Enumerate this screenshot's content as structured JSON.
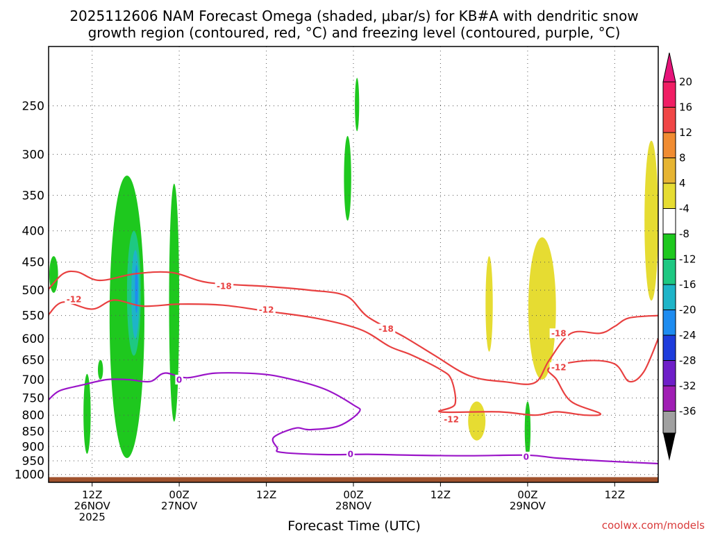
{
  "chart_data": {
    "type": "cross-section",
    "title_line1": "2025112606 NAM Forecast Omega (shaded, μbar/s) for KB#A with dendritic snow",
    "title_line2": "growth region (contoured, red, °C) and freezing level (contoured, purple, °C)",
    "xlabel": "Forecast Time (UTC)",
    "ylabel": "",
    "credit": "coolwx.com/models",
    "y_axis": {
      "scale": "log",
      "inverted": true,
      "ylim": [
        1030,
        200
      ],
      "ticks": [
        250,
        300,
        350,
        400,
        450,
        500,
        550,
        600,
        650,
        700,
        750,
        800,
        850,
        900,
        950,
        1000
      ],
      "grid": true
    },
    "x_axis": {
      "start_hour": 6,
      "xlim": [
        0,
        84
      ],
      "grid": true,
      "ticks": [
        {
          "hour": 6,
          "label1": "12Z",
          "label2": "26NOV",
          "label3": "2025"
        },
        {
          "hour": 18,
          "label1": "00Z",
          "label2": "27NOV",
          "label3": ""
        },
        {
          "hour": 30,
          "label1": "12Z",
          "label2": "",
          "label3": ""
        },
        {
          "hour": 42,
          "label1": "00Z",
          "label2": "28NOV",
          "label3": ""
        },
        {
          "hour": 54,
          "label1": "12Z",
          "label2": "",
          "label3": ""
        },
        {
          "hour": 66,
          "label1": "00Z",
          "label2": "29NOV",
          "label3": ""
        },
        {
          "hour": 78,
          "label1": "12Z",
          "label2": "",
          "label3": ""
        }
      ]
    },
    "colorbar": {
      "units": "μbar/s",
      "levels": [
        {
          "label": "20",
          "color": "#f01e64"
        },
        {
          "label": "16",
          "color": "#f04646"
        },
        {
          "label": "12",
          "color": "#f08c32"
        },
        {
          "label": "8",
          "color": "#e6b432"
        },
        {
          "label": "4",
          "color": "#e6dc32"
        },
        {
          "label": "-4",
          "color": "#ffffff"
        },
        {
          "label": "-8",
          "color": "#1ec81e"
        },
        {
          "label": "-12",
          "color": "#1ec882"
        },
        {
          "label": "-16",
          "color": "#1eb4c8"
        },
        {
          "label": "-20",
          "color": "#1e8cf0"
        },
        {
          "label": "-24",
          "color": "#1e3cdc"
        },
        {
          "label": "-28",
          "color": "#6e1ec8"
        },
        {
          "label": "-32",
          "color": "#a01eb4"
        },
        {
          "label": "-36",
          "color": "#a0a0a0"
        }
      ],
      "top_arrow_color": "#e6147a",
      "bottom_arrow_color": "#000000"
    },
    "contours": [
      {
        "name": "-18",
        "variable": "temperature",
        "units": "°C",
        "color": "#e84040",
        "labels": [
          {
            "text": "-18",
            "hour": 24.2,
            "p": 492
          },
          {
            "text": "-18",
            "hour": 46.5,
            "p": 578
          },
          {
            "text": "-18",
            "hour": 70.3,
            "p": 588
          }
        ],
        "points": [
          [
            0,
            498
          ],
          [
            2,
            470
          ],
          [
            4,
            467
          ],
          [
            7,
            482
          ],
          [
            12,
            470
          ],
          [
            17,
            468
          ],
          [
            22,
            486
          ],
          [
            30,
            493
          ],
          [
            36,
            500
          ],
          [
            41,
            511
          ],
          [
            44,
            553
          ],
          [
            49,
            596
          ],
          [
            53,
            637
          ],
          [
            58,
            690
          ],
          [
            63,
            706
          ],
          [
            67,
            708
          ],
          [
            69,
            650
          ],
          [
            72,
            588
          ],
          [
            76,
            588
          ],
          [
            78,
            573
          ],
          [
            80,
            555
          ],
          [
            84,
            550
          ]
        ]
      },
      {
        "name": "-12",
        "variable": "temperature",
        "units": "°C",
        "color": "#e84040",
        "labels": [
          {
            "text": "-12",
            "hour": 3.5,
            "p": 517
          },
          {
            "text": "-12",
            "hour": 30.0,
            "p": 538
          },
          {
            "text": "-12",
            "hour": 55.5,
            "p": 812
          },
          {
            "text": "-12",
            "hour": 70.3,
            "p": 668
          }
        ],
        "points": [
          [
            0,
            548
          ],
          [
            2,
            523
          ],
          [
            6,
            537
          ],
          [
            9,
            519
          ],
          [
            13,
            531
          ],
          [
            18,
            527
          ],
          [
            24,
            529
          ],
          [
            30,
            541
          ],
          [
            37,
            556
          ],
          [
            43,
            580
          ],
          [
            47,
            618
          ],
          [
            50,
            638
          ],
          [
            54,
            674
          ],
          [
            55.5,
            700
          ],
          [
            56,
            768
          ],
          [
            54,
            790
          ],
          [
            62,
            790
          ],
          [
            67,
            800
          ],
          [
            70,
            790
          ],
          [
            74,
            800
          ],
          [
            76,
            795
          ],
          [
            72,
            760
          ],
          [
            70,
            700
          ],
          [
            69,
            670
          ],
          [
            74,
            652
          ],
          [
            78,
            660
          ],
          [
            80,
            705
          ],
          [
            82,
            680
          ],
          [
            84,
            600
          ]
        ]
      },
      {
        "name": "0",
        "variable": "temperature",
        "units": "°C",
        "color": "#9a14c8",
        "labels": [
          {
            "text": "0",
            "hour": 18.0,
            "p": 700
          },
          {
            "text": "0",
            "hour": 41.6,
            "p": 925
          },
          {
            "text": "0",
            "hour": 65.8,
            "p": 935
          }
        ],
        "points": [
          [
            0,
            755
          ],
          [
            1.5,
            730
          ],
          [
            4.5,
            715
          ],
          [
            8,
            700
          ],
          [
            11,
            700
          ],
          [
            14,
            705
          ],
          [
            16,
            683
          ],
          [
            19,
            695
          ],
          [
            23,
            683
          ],
          [
            29,
            685
          ],
          [
            33,
            697
          ],
          [
            38,
            725
          ],
          [
            42,
            770
          ],
          [
            42.8,
            790
          ],
          [
            40,
            833
          ],
          [
            36,
            845
          ],
          [
            34,
            840
          ],
          [
            31,
            870
          ],
          [
            31.5,
            905
          ],
          [
            32,
            920
          ],
          [
            38,
            928
          ],
          [
            44,
            927
          ],
          [
            50,
            930
          ],
          [
            58,
            932
          ],
          [
            66,
            930
          ],
          [
            70,
            940
          ],
          [
            76,
            950
          ],
          [
            84,
            960
          ]
        ]
      }
    ],
    "shaded_regions": [
      {
        "level": "-8",
        "color": "#1ec81e",
        "hours": [
          0.1,
          1.3
        ],
        "p_range": [
          440,
          505
        ]
      },
      {
        "level": "-8",
        "color": "#1ec81e",
        "hours": [
          4.8,
          5.8
        ],
        "p_range": [
          685,
          925
        ]
      },
      {
        "level": "-8",
        "color": "#1ec81e",
        "hours": [
          6.8,
          7.5
        ],
        "p_range": [
          650,
          700
        ]
      },
      {
        "level": "-8",
        "color": "#1ec81e",
        "hours": [
          8.4,
          13.2
        ],
        "p_range": [
          325,
          940
        ]
      },
      {
        "level": "-12",
        "color": "#1ec882",
        "hours": [
          10.8,
          12.7
        ],
        "p_range": [
          400,
          640
        ]
      },
      {
        "level": "-16",
        "color": "#1eb4c8",
        "hours": [
          11.4,
          12.5
        ],
        "p_range": [
          430,
          600
        ]
      },
      {
        "level": "-20",
        "color": "#1e8cf0",
        "hours": [
          11.9,
          12.3
        ],
        "p_range": [
          455,
          545
        ]
      },
      {
        "level": "-8",
        "color": "#1ec81e",
        "hours": [
          16.6,
          18.0
        ],
        "p_range": [
          335,
          820
        ]
      },
      {
        "level": "-8",
        "color": "#1ec81e",
        "hours": [
          40.7,
          41.7
        ],
        "p_range": [
          280,
          385
        ]
      },
      {
        "level": "-8",
        "color": "#1ec81e",
        "hours": [
          42.2,
          42.8
        ],
        "p_range": [
          225,
          275
        ]
      },
      {
        "level": "-8",
        "color": "#1ec81e",
        "hours": [
          65.6,
          66.4
        ],
        "p_range": [
          760,
          940
        ]
      },
      {
        "level": "4",
        "color": "#e6dc32",
        "hours": [
          60.2,
          61.2
        ],
        "p_range": [
          440,
          630
        ]
      },
      {
        "level": "4",
        "color": "#e6dc32",
        "hours": [
          57.8,
          60.2
        ],
        "p_range": [
          760,
          880
        ]
      },
      {
        "level": "4",
        "color": "#e6dc32",
        "hours": [
          66.1,
          69.9
        ],
        "p_range": [
          410,
          700
        ]
      },
      {
        "level": "4",
        "color": "#e6dc32",
        "hours": [
          82.1,
          84
        ],
        "p_range": [
          285,
          520
        ]
      }
    ],
    "terrain": {
      "color": "#a0522d",
      "p_top": 1010
    }
  }
}
